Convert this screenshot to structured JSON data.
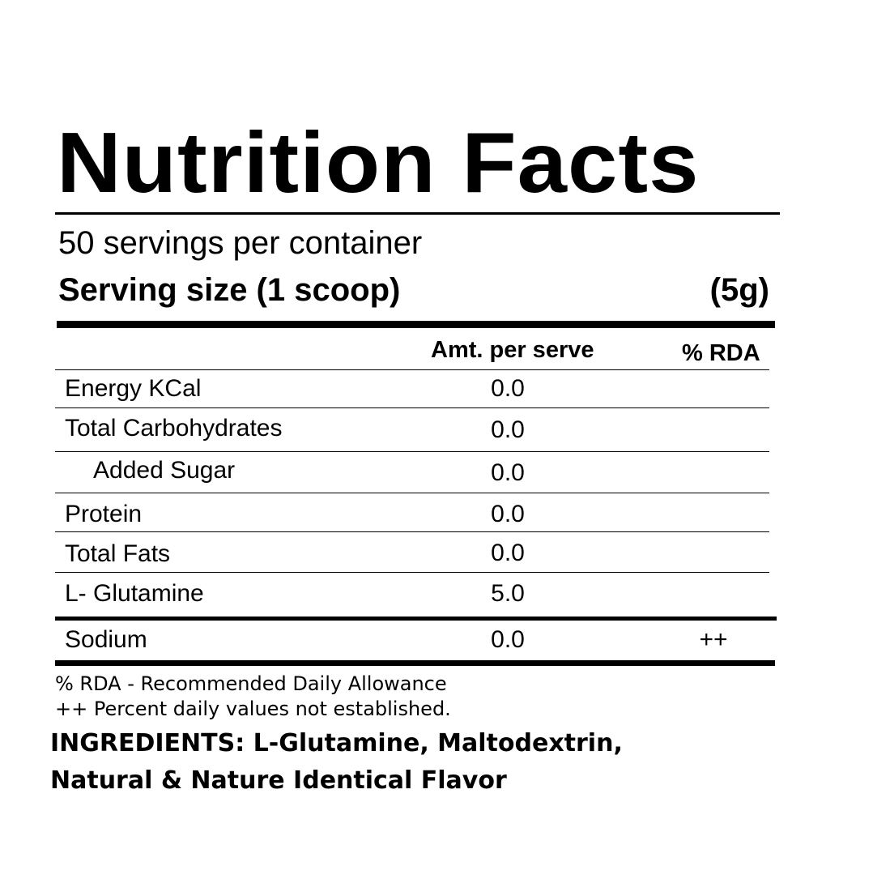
{
  "title": "Nutrition Facts",
  "servings": {
    "per_container": "50 servings per container",
    "size_label": "Serving size (1 scoop)",
    "size_weight": "(5g)"
  },
  "table": {
    "headers": {
      "amount": "Amt. per serve",
      "rda": "% RDA"
    },
    "rows": [
      {
        "name": "Energy KCal",
        "amount": "0.0",
        "rda": ""
      },
      {
        "name": "Total Carbohydrates",
        "amount": "0.0",
        "rda": ""
      },
      {
        "name": "Added Sugar",
        "amount": "0.0",
        "rda": ""
      },
      {
        "name": "Protein",
        "amount": "0.0",
        "rda": ""
      },
      {
        "name": "Total Fats",
        "amount": "0.0",
        "rda": ""
      },
      {
        "name": "L- Glutamine",
        "amount": "5.0",
        "rda": ""
      },
      {
        "name": "Sodium",
        "amount": "0.0",
        "rda": "++"
      }
    ]
  },
  "footnotes": {
    "rda_definition": "% RDA - Recommended Daily Allowance",
    "not_established": "++ Percent daily values not established."
  },
  "ingredients": {
    "line1": "INGREDIENTS: L-Glutamine, Maltodextrin,",
    "line2": "Natural & Nature Identical Flavor"
  }
}
